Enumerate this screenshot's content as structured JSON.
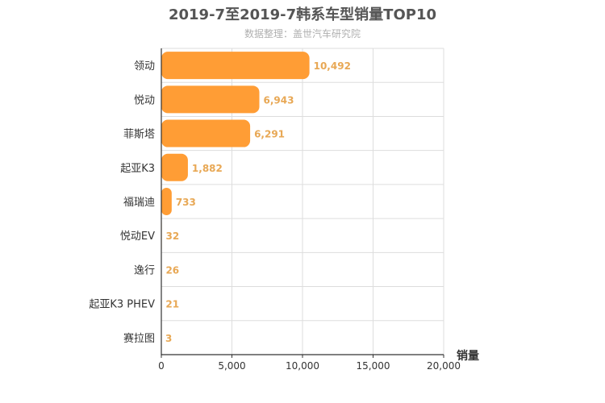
{
  "chart_data": {
    "type": "bar",
    "orientation": "horizontal",
    "title": "2019-7至2019-7韩系车型销量TOP10",
    "subtitle": "数据整理：盖世汽车研究院",
    "xlabel": "销量",
    "ylabel": "",
    "categories": [
      "领动",
      "悦动",
      "菲斯塔",
      "起亚K3",
      "福瑞迪",
      "悦动EV",
      "逸行",
      "起亚K3 PHEV",
      "赛拉图"
    ],
    "values": [
      10492,
      6943,
      6291,
      1882,
      733,
      32,
      26,
      21,
      3
    ],
    "value_labels": [
      "10,492",
      "6,943",
      "6,291",
      "1,882",
      "733",
      "32",
      "26",
      "21",
      "3"
    ],
    "xlim": [
      0,
      20000
    ],
    "xticks": [
      0,
      5000,
      10000,
      15000,
      20000
    ],
    "xtick_labels": [
      "0",
      "5,000",
      "10,000",
      "15,000",
      "20,000"
    ],
    "grid": true,
    "bar_color": "#ff9d35",
    "label_color": "#e8a855"
  }
}
